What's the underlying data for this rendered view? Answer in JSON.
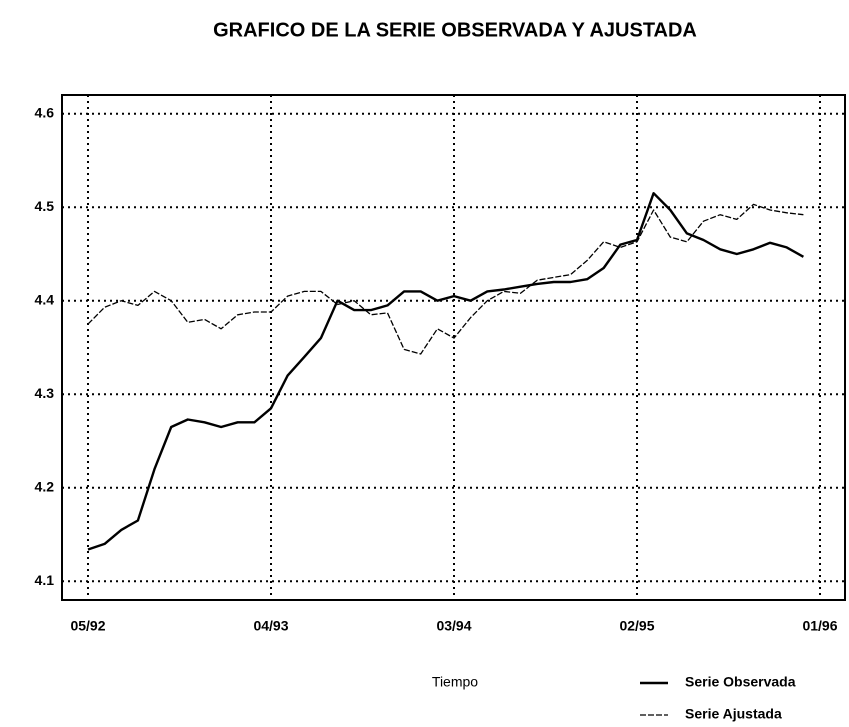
{
  "chart_data": {
    "type": "line",
    "title": "GRAFICO DE LA SERIE OBSERVADA Y AJUSTADA",
    "x_label": "Tiempo",
    "categories": [
      "05/92",
      null,
      null,
      null,
      null,
      null,
      null,
      null,
      null,
      null,
      null,
      "04/93",
      null,
      null,
      null,
      null,
      null,
      null,
      null,
      null,
      null,
      null,
      "03/94",
      null,
      null,
      null,
      null,
      null,
      null,
      null,
      null,
      null,
      null,
      "02/95",
      null,
      null,
      null,
      null,
      null,
      null,
      null,
      null,
      null,
      null,
      "01/96"
    ],
    "series": [
      {
        "name": "Serie Observada",
        "color": "#000000",
        "style": "solid",
        "values": [
          4.134,
          4.14,
          4.155,
          4.165,
          4.22,
          4.265,
          4.273,
          4.27,
          4.265,
          4.27,
          4.27,
          4.285,
          4.32,
          4.34,
          4.36,
          4.4,
          4.39,
          4.39,
          4.395,
          4.41,
          4.41,
          4.4,
          4.405,
          4.4,
          4.41,
          4.412,
          4.415,
          4.418,
          4.42,
          4.42,
          4.423,
          4.435,
          4.46,
          4.465,
          4.515,
          4.497,
          4.472,
          4.465,
          4.455,
          4.45,
          4.455,
          4.462,
          4.457,
          4.447,
          null
        ]
      },
      {
        "name": "Serie Ajustada",
        "color": "#000000",
        "style": "dashed",
        "values": [
          4.375,
          4.393,
          4.4,
          4.395,
          4.41,
          4.4,
          4.377,
          4.38,
          4.37,
          4.385,
          4.388,
          4.388,
          4.405,
          4.41,
          4.41,
          4.396,
          4.4,
          4.385,
          4.387,
          4.348,
          4.343,
          4.37,
          4.36,
          4.382,
          4.4,
          4.41,
          4.408,
          4.422,
          4.425,
          4.428,
          4.443,
          4.463,
          4.457,
          4.463,
          4.497,
          4.468,
          4.463,
          4.485,
          4.492,
          4.487,
          4.503,
          4.497,
          4.494,
          4.492,
          null
        ]
      }
    ],
    "ylim": [
      4.08,
      4.62
    ],
    "yticks": [
      4.1,
      4.2,
      4.3,
      4.4,
      4.5,
      4.6
    ],
    "grid": true,
    "legend": "bottom-right"
  }
}
